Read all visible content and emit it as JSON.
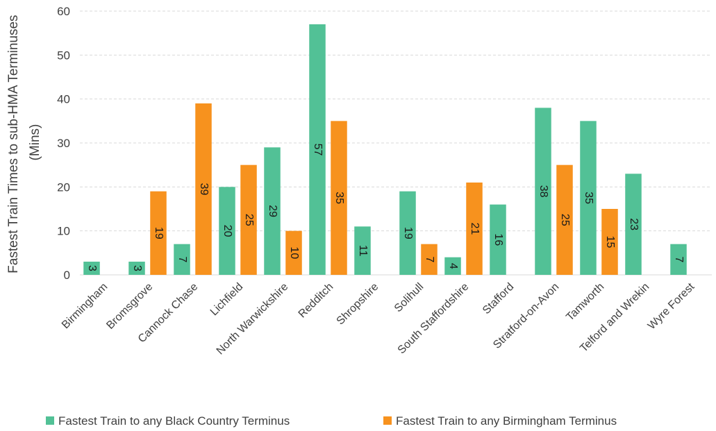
{
  "chart_data": {
    "type": "bar",
    "ylabel": "Fastest Train Times to sub-HMA Terminuses (Mins)",
    "ylabel_lines": [
      "Fastest Train Times to sub-HMA Terminuses",
      "(Mins)"
    ],
    "ylim": [
      0,
      60
    ],
    "yticks": [
      0,
      10,
      20,
      30,
      40,
      50,
      60
    ],
    "grid": true,
    "legend_position": "bottom",
    "categories": [
      "Birmingham",
      "Bromsgrove",
      "Cannock Chase",
      "Lichfield",
      "North Warwickshire",
      "Redditch",
      "Shropshire",
      "Solihull",
      "South Staffordshire",
      "Stafford",
      "Stratford-on-Avon",
      "Tamworth",
      "Telford and Wrekin",
      "Wyre Forest"
    ],
    "series": [
      {
        "name": "Fastest Train to any Black Country Terminus",
        "color": "#52c196",
        "values": [
          3,
          3,
          7,
          20,
          29,
          57,
          11,
          19,
          4,
          16,
          38,
          35,
          23,
          7
        ]
      },
      {
        "name": "Fastest Train to any Birmingham Terminus",
        "color": "#f7921e",
        "values": [
          null,
          19,
          39,
          25,
          10,
          35,
          null,
          7,
          21,
          null,
          25,
          15,
          null,
          null
        ]
      }
    ]
  }
}
